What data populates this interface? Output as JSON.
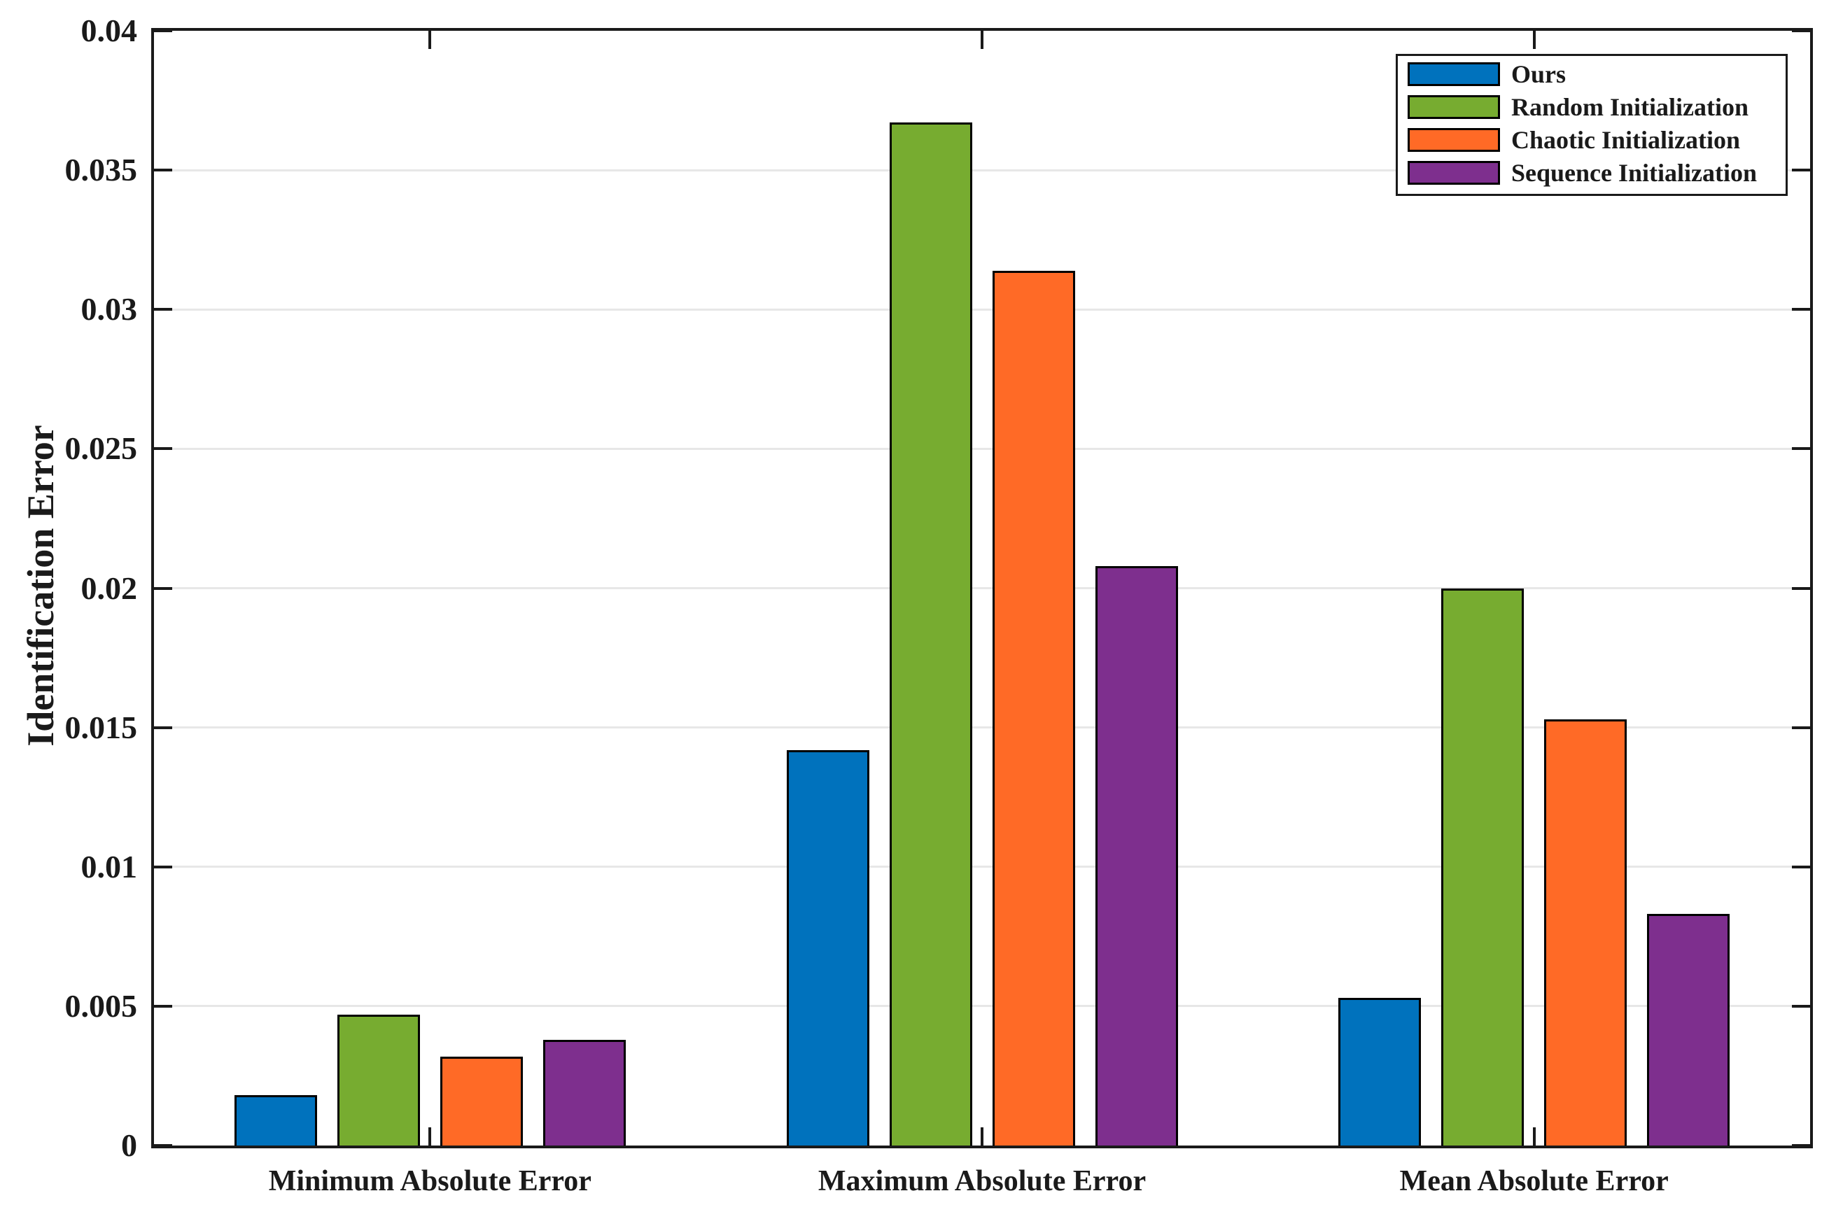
{
  "y_axis": {
    "label": "Identification Error",
    "tick_labels": [
      "0",
      "0.005",
      "0.01",
      "0.015",
      "0.02",
      "0.025",
      "0.03",
      "0.035",
      "0.04"
    ],
    "tick_values": [
      0,
      0.005,
      0.01,
      0.015,
      0.02,
      0.025,
      0.03,
      0.035,
      0.04
    ]
  },
  "chart_data": {
    "type": "bar",
    "title": "",
    "xlabel": "",
    "ylabel": "Identification Error",
    "ylim": [
      0,
      0.04
    ],
    "ytick_step": 0.005,
    "grid": true,
    "legend_position": "top-right",
    "categories": [
      "Minimum Absolute Error",
      "Maximum Absolute Error",
      "Mean Absolute Error"
    ],
    "series": [
      {
        "name": "Ours",
        "color": "#0072BD",
        "values": [
          0.0018,
          0.0142,
          0.0053
        ]
      },
      {
        "name": "Random Initialization",
        "color": "#77AC30",
        "values": [
          0.0047,
          0.0367,
          0.02
        ]
      },
      {
        "name": "Chaotic Initialization",
        "color": "#FF6A26",
        "values": [
          0.0032,
          0.0314,
          0.0153
        ]
      },
      {
        "name": "Sequence Initialization",
        "color": "#7E2F8E",
        "values": [
          0.0038,
          0.0208,
          0.0083
        ]
      }
    ],
    "bar_edge_color": "#000000",
    "grid_color": "#e7e7e7",
    "axis_color": "#1a1a1a"
  }
}
